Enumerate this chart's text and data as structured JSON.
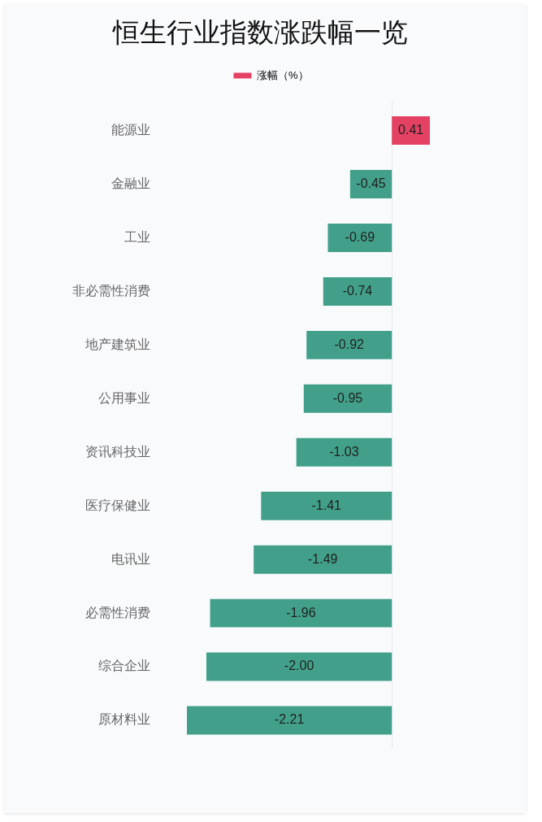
{
  "chart_data": {
    "type": "bar",
    "title": "恒生行业指数涨跌幅一览",
    "orientation": "horizontal",
    "legend": "top",
    "categories": [
      "能源业",
      "金融业",
      "工业",
      "非必需性消费",
      "地产建筑业",
      "公用事业",
      "资讯科技业",
      "医疗保健业",
      "电讯业",
      "必需性消费",
      "综合企业",
      "原材料业"
    ],
    "series": [
      {
        "name": "涨幅（%）",
        "color": "#e54263",
        "colors": [
          "#e54263",
          "#42a08a",
          "#42a08a",
          "#42a08a",
          "#42a08a",
          "#42a08a",
          "#42a08a",
          "#42a08a",
          "#42a08a",
          "#42a08a",
          "#42a08a",
          "#42a08a"
        ],
        "values": [
          0.41,
          -0.45,
          -0.69,
          -0.74,
          -0.92,
          -0.95,
          -1.03,
          -1.41,
          -1.49,
          -1.96,
          -2.0,
          -2.21
        ],
        "value_labels": [
          "0.41",
          "-0.45",
          "-0.69",
          "-0.74",
          "-0.92",
          "-0.95",
          "-1.03",
          "-1.41",
          "-1.49",
          "-1.96",
          "-2.00",
          "-2.21"
        ]
      }
    ]
  }
}
